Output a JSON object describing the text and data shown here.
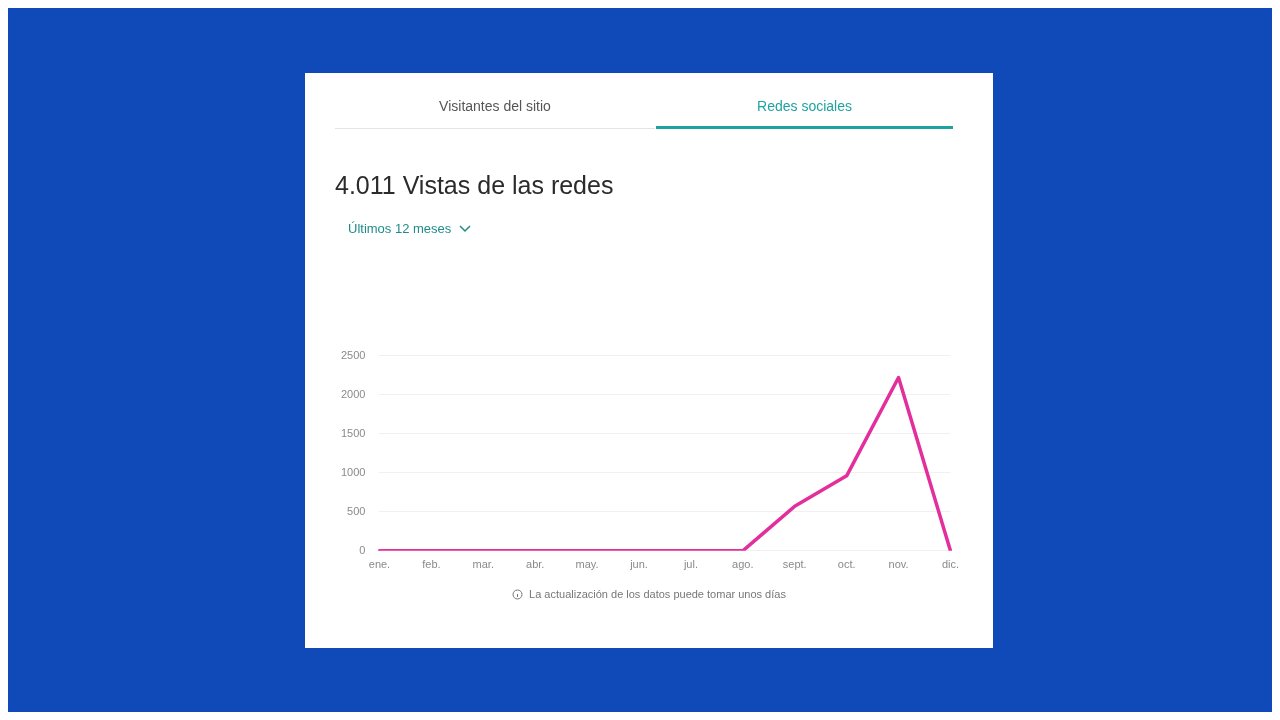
{
  "chart_data": {
    "type": "line",
    "title": "4.011 Vistas de las redes",
    "annotations": [
      "Visitantes del sitio",
      "Redes sociales",
      "Últimos 12 meses",
      "La actualización de los datos puede tomar unos días"
    ],
    "categories": [
      "ene.",
      "feb.",
      "mar.",
      "abr.",
      "may.",
      "jun.",
      "jul.",
      "ago.",
      "sept.",
      "oct.",
      "nov.",
      "dic."
    ],
    "series": [
      {
        "color": "#e22f9c",
        "values": [
          0,
          0,
          0,
          0,
          0,
          0,
          0,
          0,
          570,
          960,
          2220,
          0
        ]
      }
    ],
    "ylim": [
      0,
      2500
    ],
    "yticks": [
      0,
      500,
      1000,
      1500,
      2000,
      2500
    ],
    "grid": "y",
    "legend": false,
    "marker": "none",
    "line_style": "solid"
  }
}
